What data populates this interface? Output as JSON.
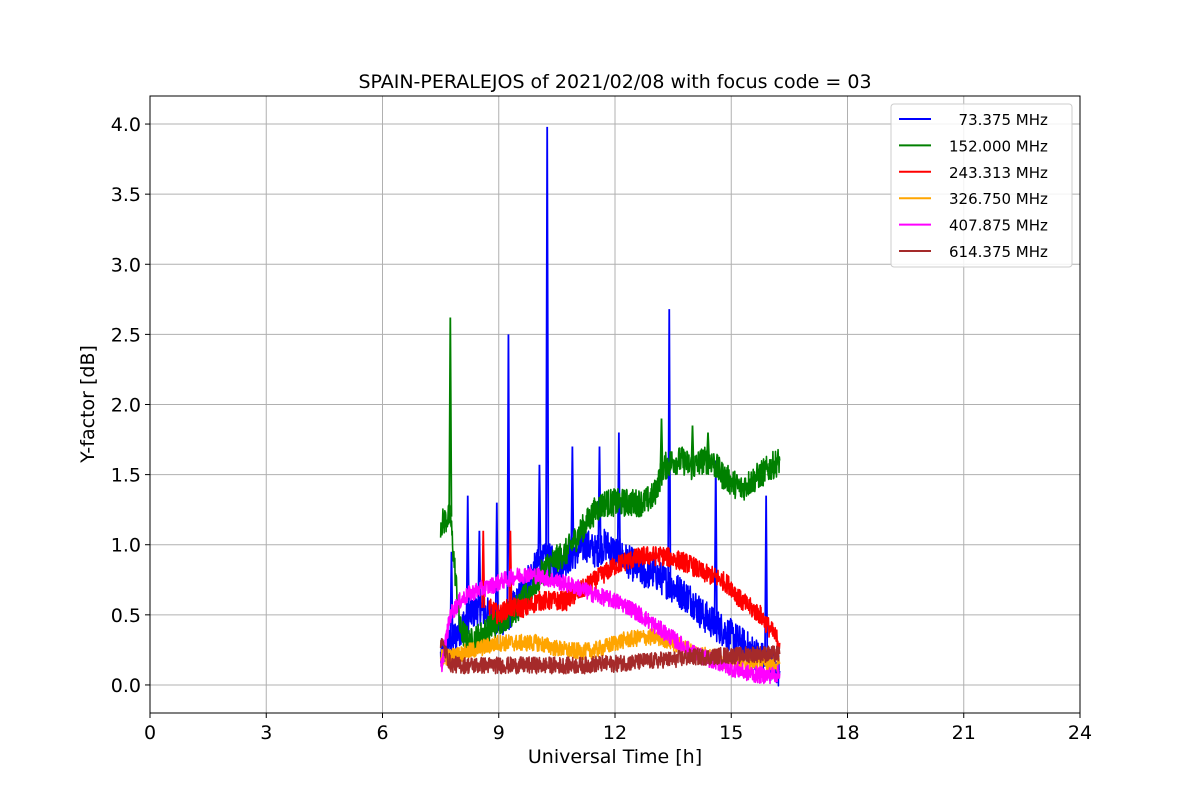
{
  "chart_data": {
    "type": "line",
    "title": "SPAIN-PERALEJOS of 2021/02/08 with focus code = 03",
    "xlabel": "Universal Time [h]",
    "ylabel": "Y-factor [dB]",
    "xlim": [
      0,
      24
    ],
    "ylim": [
      -0.2,
      4.2
    ],
    "xticks": [
      0,
      3,
      6,
      9,
      12,
      15,
      18,
      21,
      24
    ],
    "yticks": [
      0.0,
      0.5,
      1.0,
      1.5,
      2.0,
      2.5,
      3.0,
      3.5,
      4.0
    ],
    "xtick_labels": [
      "0",
      "3",
      "6",
      "9",
      "12",
      "15",
      "18",
      "21",
      "24"
    ],
    "ytick_labels": [
      "0.0",
      "0.5",
      "1.0",
      "1.5",
      "2.0",
      "2.5",
      "3.0",
      "3.5",
      "4.0"
    ],
    "grid": true,
    "legend_position": "top-right",
    "series": [
      {
        "name": "  73.375 MHz",
        "color": "#0000ff",
        "x": [
          7.5,
          7.75,
          8.0,
          8.25,
          8.5,
          8.75,
          9.0,
          9.25,
          9.5,
          9.75,
          10.0,
          10.25,
          10.5,
          10.75,
          11.0,
          11.25,
          11.5,
          11.75,
          12.0,
          12.25,
          12.5,
          12.75,
          13.0,
          13.25,
          13.5,
          13.75,
          14.0,
          14.25,
          14.5,
          14.75,
          15.0,
          15.25,
          15.5,
          15.75,
          16.0,
          16.25
        ],
        "y": [
          0.2,
          0.3,
          0.4,
          0.5,
          0.55,
          0.5,
          0.45,
          0.5,
          0.6,
          0.75,
          0.85,
          0.9,
          0.85,
          0.9,
          0.95,
          1.0,
          0.95,
          1.0,
          0.95,
          0.9,
          0.85,
          0.8,
          0.8,
          0.75,
          0.7,
          0.65,
          0.6,
          0.5,
          0.45,
          0.4,
          0.35,
          0.3,
          0.25,
          0.2,
          0.15,
          0.1
        ],
        "peaks": [
          {
            "x": 7.78,
            "y": 0.95
          },
          {
            "x": 8.2,
            "y": 1.35
          },
          {
            "x": 8.5,
            "y": 1.1
          },
          {
            "x": 8.95,
            "y": 1.3
          },
          {
            "x": 9.25,
            "y": 2.5
          },
          {
            "x": 10.05,
            "y": 1.57
          },
          {
            "x": 10.25,
            "y": 3.98
          },
          {
            "x": 10.9,
            "y": 1.7
          },
          {
            "x": 11.6,
            "y": 1.7
          },
          {
            "x": 12.1,
            "y": 1.8
          },
          {
            "x": 13.4,
            "y": 2.68
          },
          {
            "x": 14.6,
            "y": 1.6
          },
          {
            "x": 15.9,
            "y": 1.35
          }
        ]
      },
      {
        "name": "152.000 MHz",
        "color": "#008000",
        "x": [
          7.5,
          7.75,
          8.0,
          8.25,
          8.5,
          8.75,
          9.0,
          9.25,
          9.5,
          9.75,
          10.0,
          10.25,
          10.5,
          10.75,
          11.0,
          11.25,
          11.5,
          11.75,
          12.0,
          12.25,
          12.5,
          12.75,
          13.0,
          13.25,
          13.5,
          13.75,
          14.0,
          14.25,
          14.5,
          14.75,
          15.0,
          15.25,
          15.5,
          15.75,
          16.0,
          16.25
        ],
        "y": [
          1.15,
          1.2,
          0.4,
          0.3,
          0.35,
          0.4,
          0.45,
          0.5,
          0.55,
          0.65,
          0.75,
          0.85,
          0.9,
          0.95,
          1.05,
          1.15,
          1.25,
          1.3,
          1.3,
          1.3,
          1.3,
          1.3,
          1.35,
          1.55,
          1.6,
          1.6,
          1.55,
          1.6,
          1.6,
          1.5,
          1.45,
          1.4,
          1.45,
          1.5,
          1.55,
          1.6
        ],
        "peaks": [
          {
            "x": 7.75,
            "y": 2.62
          },
          {
            "x": 13.2,
            "y": 1.9
          },
          {
            "x": 14.0,
            "y": 1.85
          },
          {
            "x": 14.4,
            "y": 1.8
          }
        ]
      },
      {
        "name": "243.313 MHz",
        "color": "#ff0000",
        "x": [
          8.75,
          9.0,
          9.25,
          9.5,
          9.75,
          10.0,
          10.25,
          10.5,
          10.75,
          11.0,
          11.25,
          11.5,
          11.75,
          12.0,
          12.25,
          12.5,
          12.75,
          13.0,
          13.25,
          13.5,
          13.75,
          14.0,
          14.25,
          14.5,
          14.75,
          15.0,
          15.25,
          15.5,
          15.75,
          16.0,
          16.25
        ],
        "y": [
          0.55,
          0.5,
          0.55,
          0.55,
          0.55,
          0.6,
          0.6,
          0.6,
          0.6,
          0.65,
          0.7,
          0.75,
          0.8,
          0.85,
          0.88,
          0.9,
          0.92,
          0.92,
          0.92,
          0.9,
          0.88,
          0.85,
          0.8,
          0.78,
          0.75,
          0.7,
          0.6,
          0.55,
          0.5,
          0.4,
          0.3
        ],
        "peaks": [
          {
            "x": 8.6,
            "y": 1.1
          },
          {
            "x": 9.3,
            "y": 1.1
          }
        ]
      },
      {
        "name": "326.750 MHz",
        "color": "#ffa500",
        "x": [
          7.5,
          7.75,
          8.0,
          8.25,
          8.5,
          8.75,
          9.0,
          9.25,
          9.5,
          9.75,
          10.0,
          10.25,
          10.5,
          10.75,
          11.0,
          11.25,
          11.5,
          11.75,
          12.0,
          12.25,
          12.5,
          12.75,
          13.0,
          13.25,
          13.5,
          13.75,
          14.0,
          14.25,
          14.5,
          14.75,
          15.0,
          15.25,
          15.5,
          15.75,
          16.0,
          16.25
        ],
        "y": [
          0.2,
          0.2,
          0.22,
          0.24,
          0.26,
          0.28,
          0.3,
          0.3,
          0.3,
          0.3,
          0.3,
          0.28,
          0.26,
          0.25,
          0.24,
          0.24,
          0.25,
          0.27,
          0.3,
          0.32,
          0.33,
          0.34,
          0.34,
          0.33,
          0.3,
          0.27,
          0.24,
          0.22,
          0.2,
          0.18,
          0.17,
          0.16,
          0.15,
          0.15,
          0.15,
          0.15
        ],
        "peaks": []
      },
      {
        "name": "407.875 MHz",
        "color": "#ff00ff",
        "x": [
          7.5,
          7.75,
          8.0,
          8.25,
          8.5,
          8.75,
          9.0,
          9.25,
          9.5,
          9.75,
          10.0,
          10.25,
          10.5,
          10.75,
          11.0,
          11.25,
          11.5,
          11.75,
          12.0,
          12.25,
          12.5,
          12.75,
          13.0,
          13.25,
          13.5,
          13.75,
          14.0,
          14.25,
          14.5,
          14.75,
          15.0,
          15.25,
          15.5,
          15.75,
          16.0,
          16.25
        ],
        "y": [
          0.1,
          0.5,
          0.6,
          0.65,
          0.68,
          0.7,
          0.73,
          0.76,
          0.78,
          0.79,
          0.78,
          0.76,
          0.74,
          0.72,
          0.7,
          0.67,
          0.64,
          0.62,
          0.6,
          0.57,
          0.53,
          0.48,
          0.43,
          0.38,
          0.33,
          0.28,
          0.23,
          0.2,
          0.18,
          0.15,
          0.12,
          0.1,
          0.08,
          0.07,
          0.07,
          0.08
        ],
        "peaks": []
      },
      {
        "name": "614.375 MHz",
        "color": "#a52a2a",
        "x": [
          7.5,
          7.75,
          8.0,
          8.25,
          8.5,
          8.75,
          9.0,
          9.25,
          9.5,
          9.75,
          10.0,
          10.25,
          10.5,
          10.75,
          11.0,
          11.25,
          11.5,
          11.75,
          12.0,
          12.25,
          12.5,
          12.75,
          13.0,
          13.25,
          13.5,
          13.75,
          14.0,
          14.25,
          14.5,
          14.75,
          15.0,
          15.25,
          15.5,
          15.75,
          16.0,
          16.25
        ],
        "y": [
          0.32,
          0.15,
          0.14,
          0.14,
          0.14,
          0.14,
          0.14,
          0.14,
          0.14,
          0.14,
          0.14,
          0.14,
          0.14,
          0.14,
          0.14,
          0.14,
          0.15,
          0.15,
          0.15,
          0.16,
          0.16,
          0.17,
          0.17,
          0.18,
          0.18,
          0.19,
          0.2,
          0.2,
          0.2,
          0.21,
          0.21,
          0.21,
          0.22,
          0.22,
          0.22,
          0.22
        ],
        "peaks": []
      }
    ]
  }
}
